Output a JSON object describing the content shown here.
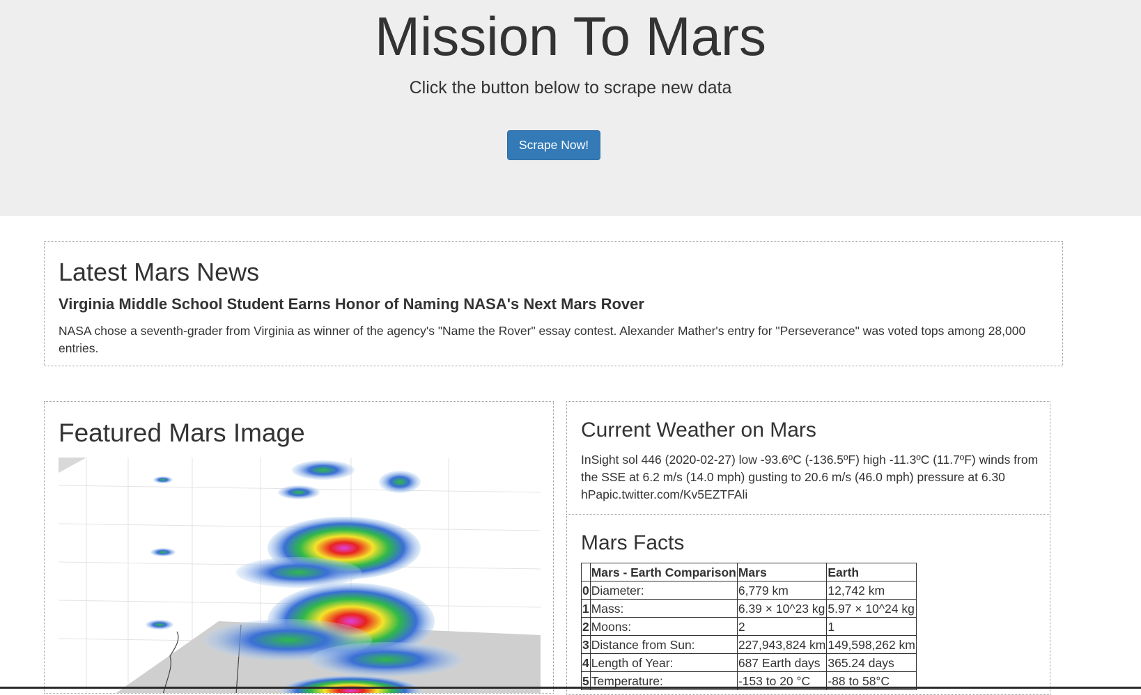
{
  "header": {
    "title": "Mission To Mars",
    "subtitle": "Click the button below to scrape new data",
    "button_label": "Scrape Now!",
    "button_color": "#337ab7",
    "background_color": "#eeeeee"
  },
  "news": {
    "heading": "Latest Mars News",
    "title": "Virginia Middle School Student Earns Honor of Naming NASA's Next Mars Rover",
    "teaser": "NASA chose a seventh-grader from Virginia as winner of the agency's \"Name the Rover\" essay contest. Alexander Mather's entry for \"Perseverance\" was voted tops among 28,000 entries."
  },
  "featured": {
    "heading": "Featured Mars Image",
    "image_icon": "radar-plot-image"
  },
  "weather": {
    "heading": "Current Weather on Mars",
    "text": "InSight sol 446 (2020-02-27) low -93.6ºC (-136.5ºF) high -11.3ºC (11.7ºF) winds from the SSE at 6.2 m/s (14.0 mph) gusting to 20.6 m/s (46.0 mph) pressure at 6.30 hPapic.twitter.com/Kv5EZTFAli"
  },
  "facts": {
    "heading": "Mars Facts",
    "columns": [
      "",
      "Mars - Earth Comparison",
      "Mars",
      "Earth"
    ],
    "rows": [
      {
        "index": "0",
        "label": "Diameter:",
        "mars": "6,779 km",
        "earth": "12,742 km"
      },
      {
        "index": "1",
        "label": "Mass:",
        "mars": "6.39 × 10^23 kg",
        "earth": "5.97 × 10^24 kg"
      },
      {
        "index": "2",
        "label": "Moons:",
        "mars": "2",
        "earth": "1"
      },
      {
        "index": "3",
        "label": "Distance from Sun:",
        "mars": "227,943,824 km",
        "earth": "149,598,262 km"
      },
      {
        "index": "4",
        "label": "Length of Year:",
        "mars": "687 Earth days",
        "earth": "365.24 days"
      },
      {
        "index": "5",
        "label": "Temperature:",
        "mars": "-153 to 20 °C",
        "earth": "-88 to 58°C"
      }
    ]
  }
}
